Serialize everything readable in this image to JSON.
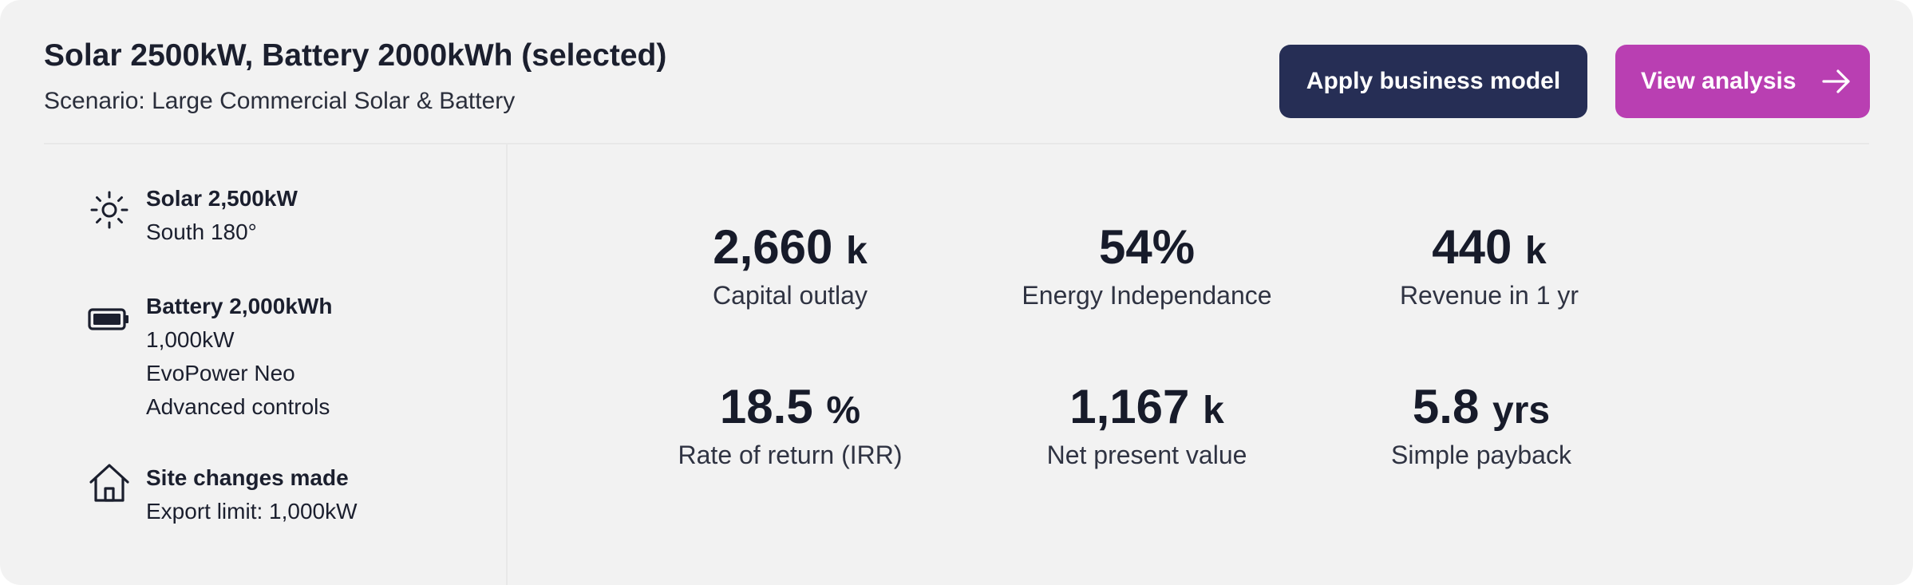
{
  "header": {
    "title": "Solar 2500kW, Battery 2000kWh (selected)",
    "subtitle": "Scenario: Large Commercial Solar & Battery"
  },
  "actions": {
    "apply_label": "Apply business model",
    "view_label": "View analysis",
    "view_icon": "arrow-right-icon"
  },
  "sidebar": {
    "solar": {
      "icon": "sun-icon",
      "title": "Solar 2,500kW",
      "orientation": "South 180°"
    },
    "battery": {
      "icon": "battery-icon",
      "title": "Battery 2,000kWh",
      "power": "1,000kW",
      "model": "EvoPower Neo",
      "controls": "Advanced controls"
    },
    "site": {
      "icon": "house-icon",
      "title": "Site changes made",
      "export_limit": "Export limit: 1,000kW"
    }
  },
  "metrics": [
    {
      "value": "2,660",
      "unit": "k",
      "label": "Capital outlay"
    },
    {
      "value": "54%",
      "unit": "",
      "label": "Energy Independance"
    },
    {
      "value": "440",
      "unit": "k",
      "label": "Revenue in 1 yr"
    },
    {
      "value": "18.5",
      "unit": "%",
      "label": "Rate of return (IRR)"
    },
    {
      "value": "1,167",
      "unit": "k",
      "label": "Net present value"
    },
    {
      "value": "5.8",
      "unit": "yrs",
      "label": "Simple payback"
    }
  ],
  "colors": {
    "card_background": "#f2f2f2",
    "primary_button": "#262e55",
    "accent_button": "#b93fb2",
    "text": "#1b1f2e"
  }
}
